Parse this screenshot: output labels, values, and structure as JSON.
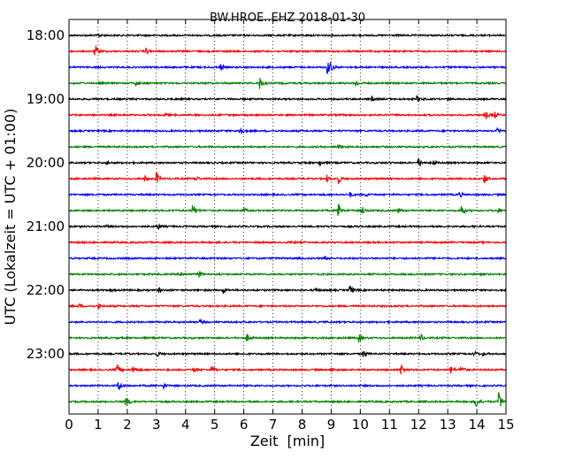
{
  "chart_data": {
    "type": "line",
    "title": "BW.HROE..EHZ 2018-01-30",
    "xlabel": "Zeit  [min]",
    "ylabel": "UTC (Lokalzeit = UTC + 01:00)",
    "xlim": [
      0,
      15
    ],
    "x_ticks": [
      "0",
      "1",
      "2",
      "3",
      "4",
      "5",
      "6",
      "7",
      "8",
      "9",
      "10",
      "11",
      "12",
      "13",
      "14",
      "15"
    ],
    "y_tick_labels": [
      {
        "row": 0,
        "label": "18:00"
      },
      {
        "row": 4,
        "label": "19:00"
      },
      {
        "row": 8,
        "label": "20:00"
      },
      {
        "row": 12,
        "label": "21:00"
      },
      {
        "row": 16,
        "label": "22:00"
      },
      {
        "row": 20,
        "label": "23:00"
      }
    ],
    "grid": "vertical dotted at each minute",
    "trace_colors": [
      "#000000",
      "#ff0000",
      "#0000ff",
      "#008000"
    ],
    "traces": [
      {
        "start": "18:00",
        "events": [
          [
            1.0,
            2
          ]
        ]
      },
      {
        "start": "18:15",
        "events": [
          [
            0.9,
            8
          ],
          [
            2.65,
            4
          ]
        ]
      },
      {
        "start": "18:30",
        "events": [
          [
            5.2,
            4
          ],
          [
            8.85,
            9
          ],
          [
            8.95,
            7
          ]
        ]
      },
      {
        "start": "18:45",
        "events": [
          [
            2.3,
            3
          ],
          [
            6.55,
            8
          ],
          [
            9.85,
            4
          ]
        ]
      },
      {
        "start": "19:00",
        "events": [
          [
            10.4,
            3
          ],
          [
            11.95,
            4
          ],
          [
            13.0,
            2
          ]
        ]
      },
      {
        "start": "19:15",
        "events": [
          [
            3.3,
            2
          ],
          [
            14.3,
            5
          ],
          [
            14.6,
            4
          ]
        ]
      },
      {
        "start": "19:30",
        "events": [
          [
            5.85,
            8
          ],
          [
            14.7,
            5
          ]
        ]
      },
      {
        "start": "19:45",
        "events": [
          [
            9.25,
            4
          ]
        ]
      },
      {
        "start": "20:00",
        "events": [
          [
            1.3,
            2
          ],
          [
            8.6,
            4
          ],
          [
            12.0,
            7
          ],
          [
            12.5,
            3
          ]
        ]
      },
      {
        "start": "20:15",
        "events": [
          [
            2.6,
            4
          ],
          [
            3.0,
            8
          ],
          [
            4.35,
            3
          ],
          [
            8.85,
            4
          ],
          [
            9.25,
            6
          ],
          [
            14.25,
            6
          ]
        ]
      },
      {
        "start": "20:30",
        "events": [
          [
            9.65,
            3
          ],
          [
            10.2,
            2
          ],
          [
            13.4,
            4
          ]
        ]
      },
      {
        "start": "20:45",
        "events": [
          [
            4.25,
            8
          ],
          [
            6.0,
            3
          ],
          [
            9.25,
            11
          ],
          [
            10.05,
            6
          ],
          [
            11.3,
            3
          ],
          [
            13.45,
            10
          ],
          [
            14.7,
            4
          ]
        ]
      },
      {
        "start": "21:00",
        "events": [
          [
            1.3,
            2
          ],
          [
            3.05,
            4
          ]
        ]
      },
      {
        "start": "21:15",
        "events": [
          [
            7.6,
            2
          ]
        ]
      },
      {
        "start": "21:30",
        "events": [
          [
            8.8,
            2
          ]
        ]
      },
      {
        "start": "21:45",
        "events": [
          [
            3.85,
            3
          ],
          [
            4.45,
            5
          ]
        ]
      },
      {
        "start": "22:00",
        "events": [
          [
            1.4,
            2
          ],
          [
            3.1,
            3
          ],
          [
            5.3,
            4
          ],
          [
            8.45,
            3
          ],
          [
            9.65,
            7
          ]
        ]
      },
      {
        "start": "22:15",
        "events": [
          [
            0.35,
            3
          ],
          [
            1.0,
            3
          ]
        ]
      },
      {
        "start": "22:30",
        "events": [
          [
            4.5,
            3
          ]
        ]
      },
      {
        "start": "22:45",
        "events": [
          [
            6.1,
            5
          ],
          [
            9.95,
            5
          ],
          [
            12.05,
            6
          ]
        ]
      },
      {
        "start": "23:00",
        "events": [
          [
            3.05,
            3
          ],
          [
            10.1,
            5
          ],
          [
            13.9,
            4
          ],
          [
            14.2,
            2
          ]
        ]
      },
      {
        "start": "23:15",
        "events": [
          [
            1.65,
            7
          ],
          [
            2.2,
            6
          ],
          [
            4.3,
            3
          ],
          [
            4.9,
            5
          ],
          [
            9.0,
            3
          ],
          [
            11.4,
            8
          ],
          [
            13.1,
            5
          ],
          [
            13.45,
            7
          ]
        ]
      },
      {
        "start": "23:30",
        "events": [
          [
            1.7,
            7
          ],
          [
            3.25,
            3
          ]
        ]
      },
      {
        "start": "23:45",
        "events": [
          [
            1.95,
            8
          ],
          [
            13.95,
            13
          ],
          [
            14.75,
            14
          ]
        ]
      }
    ]
  }
}
